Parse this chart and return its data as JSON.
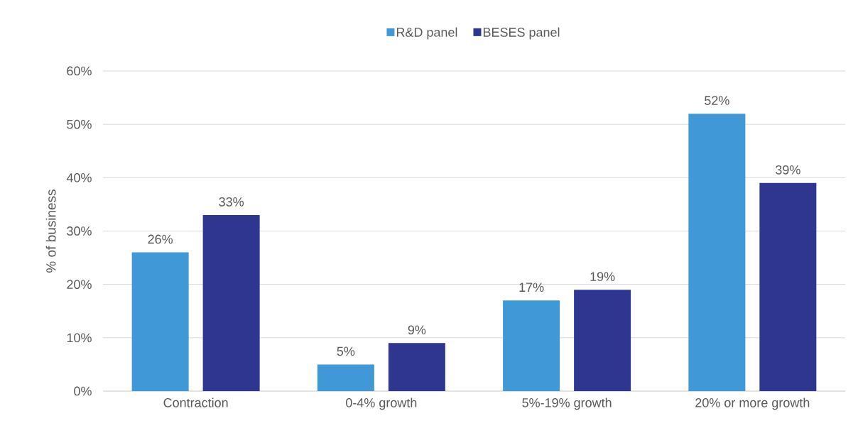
{
  "chart_data": {
    "type": "bar",
    "ylabel": "% of business",
    "categories": [
      "Contraction",
      "0-4% growth",
      "5%-19% growth",
      "20% or more growth"
    ],
    "series": [
      {
        "name": "R&D panel",
        "color": "#4198d7",
        "values": [
          26,
          5,
          17,
          52
        ],
        "value_labels": [
          "26%",
          "5%",
          "17%",
          "52%"
        ]
      },
      {
        "name": "BESES panel",
        "color": "#2e368f",
        "values": [
          33,
          9,
          19,
          39
        ],
        "value_labels": [
          "33%",
          "9%",
          "19%",
          "39%"
        ]
      }
    ],
    "ylim": [
      0,
      60
    ],
    "yticks": [
      {
        "value": 0,
        "label": "0%"
      },
      {
        "value": 10,
        "label": "10%"
      },
      {
        "value": 20,
        "label": "20%"
      },
      {
        "value": 30,
        "label": "30%"
      },
      {
        "value": 40,
        "label": "40%"
      },
      {
        "value": 50,
        "label": "50%"
      },
      {
        "value": 60,
        "label": "60%"
      }
    ],
    "grid": "y",
    "legend": "top"
  }
}
